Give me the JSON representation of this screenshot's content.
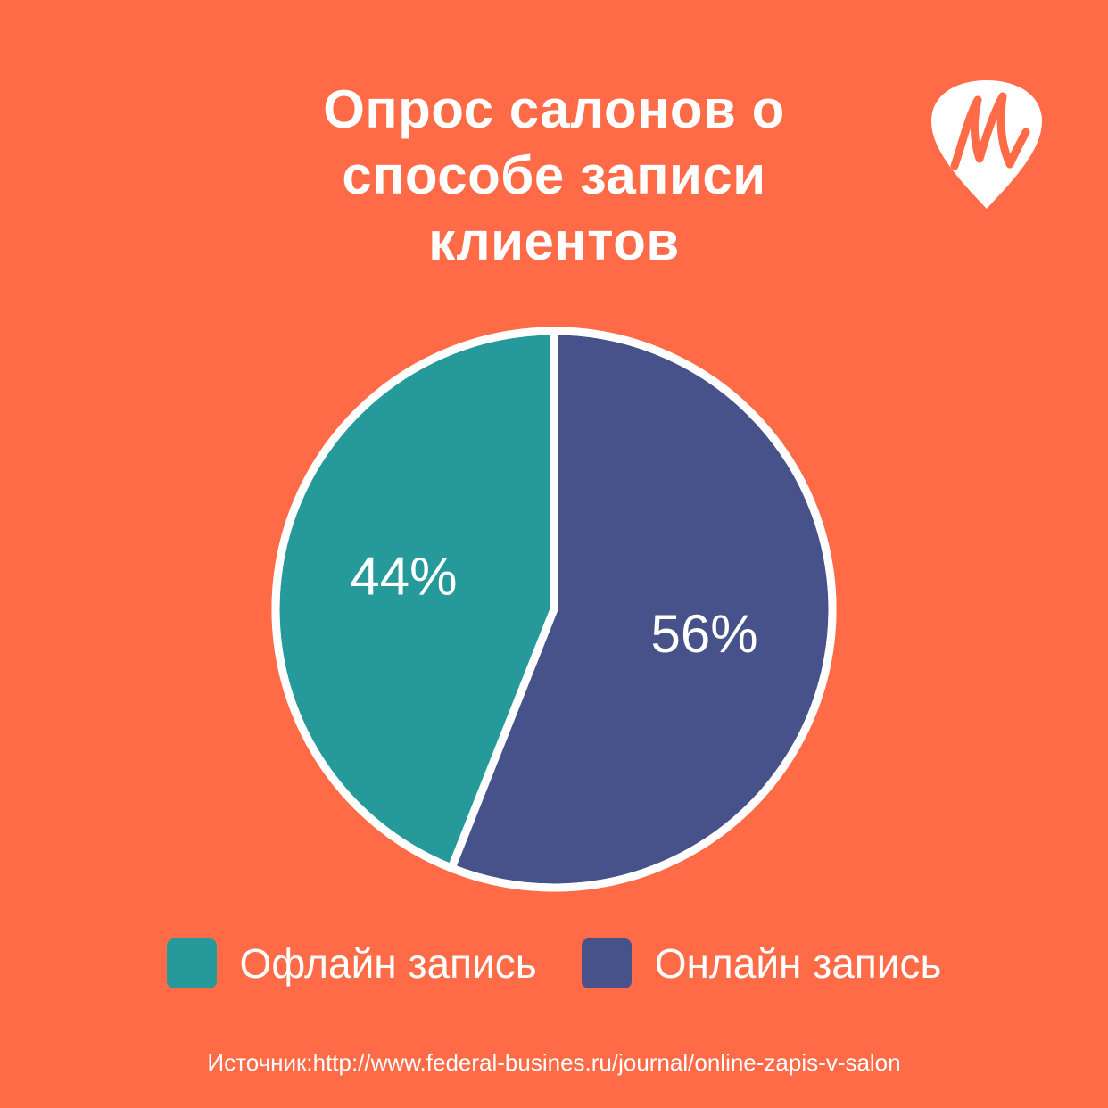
{
  "title": "Опрос салонов о\nспособе записи\nклиентов",
  "logo": {
    "icon": "guitar-pick-m-logo",
    "letter_color": "#FF6A47",
    "shape_color": "#ffffff"
  },
  "chart_data": {
    "type": "pie",
    "title": "Опрос салонов о способе записи клиентов",
    "categories": [
      "Офлайн запись",
      "Онлайн запись"
    ],
    "values": [
      44,
      56
    ],
    "labels": [
      "44%",
      "56%"
    ],
    "colors": [
      "#26999A",
      "#465289"
    ],
    "start": "12 o'clock",
    "direction": "counter-clockwise for Офлайн запись, clockwise for Онлайн запись",
    "legend_position": "bottom",
    "stroke_color": "#ffffff"
  },
  "source": "Источник:http://www.federal-busines.ru/journal/online-zapis-v-salon"
}
